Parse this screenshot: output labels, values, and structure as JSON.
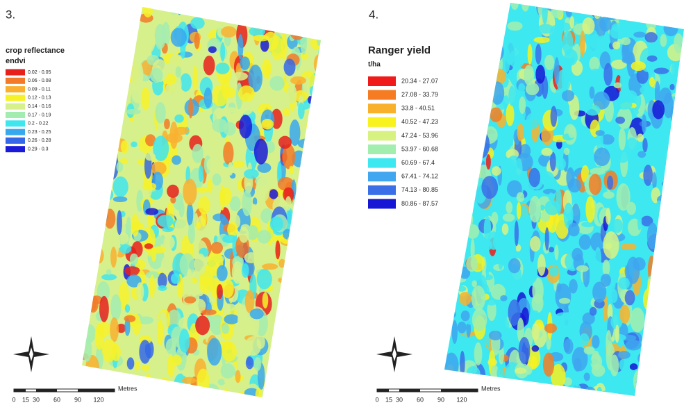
{
  "panels": [
    {
      "label": "3.",
      "legend_title": "crop reflectance",
      "legend_unit": "endvi",
      "items": [
        {
          "label": "0.02 - 0.05",
          "color": "#e8201c"
        },
        {
          "label": "0.06 - 0.08",
          "color": "#f27a28"
        },
        {
          "label": "0.09 - 0.11",
          "color": "#f9b030"
        },
        {
          "label": "0.12 - 0.13",
          "color": "#f6f22a"
        },
        {
          "label": "0.14 - 0.16",
          "color": "#d6f08c"
        },
        {
          "label": "0.17 - 0.19",
          "color": "#a3ecb0"
        },
        {
          "label": "0.2 - 0.22",
          "color": "#3fe6ee"
        },
        {
          "label": "0.23 - 0.25",
          "color": "#38a8ee"
        },
        {
          "label": "0.26 - 0.28",
          "color": "#3568e8"
        },
        {
          "label": "0.29 - 0.3",
          "color": "#1a1ad8"
        }
      ],
      "scale": [
        "0",
        "15",
        "30",
        "60",
        "90",
        "120"
      ],
      "scale_unit": "Metres"
    },
    {
      "label": "4.",
      "legend_title": "Ranger yield",
      "legend_unit": "t/ha",
      "items": [
        {
          "label": "20.34 - 27.07",
          "color": "#f01a1a"
        },
        {
          "label": "27.08 - 33.79",
          "color": "#f57c22"
        },
        {
          "label": "33.8 - 40.51",
          "color": "#f9b12c"
        },
        {
          "label": "40.52 - 47.23",
          "color": "#f8f21e"
        },
        {
          "label": "47.24 - 53.96",
          "color": "#d8f282"
        },
        {
          "label": "53.97 - 60.68",
          "color": "#a2eeae"
        },
        {
          "label": "60.69 - 67.4",
          "color": "#3ee8f0"
        },
        {
          "label": "67.41 - 74.12",
          "color": "#3fa6ef"
        },
        {
          "label": "74.13 - 80.85",
          "color": "#3a6fe8"
        },
        {
          "label": "80.86 - 87.57",
          "color": "#1616d6"
        }
      ],
      "scale": [
        "0",
        "15",
        "30",
        "60",
        "90",
        "120"
      ],
      "scale_unit": "Metres"
    }
  ]
}
